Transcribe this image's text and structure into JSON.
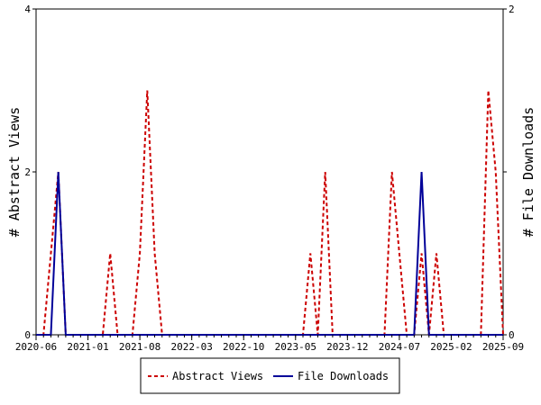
{
  "chart_data": {
    "type": "line",
    "title": "",
    "x_tick_labels": [
      "2020-06",
      "2021-01",
      "2021-08",
      "2022-03",
      "2022-10",
      "2023-05",
      "2023-12",
      "2024-07",
      "2025-02",
      "2025-09"
    ],
    "y_left": {
      "label": "# Abstract Views",
      "range": [
        0,
        4
      ],
      "ticks": [
        0,
        2,
        4
      ]
    },
    "y_right": {
      "label": "# File Downloads",
      "range": [
        0,
        2
      ],
      "ticks": [
        0,
        1,
        2
      ]
    },
    "x_range": [
      "2020-06",
      "2025-09"
    ],
    "legend_position": "bottom",
    "grid": false,
    "series": [
      {
        "name": "Abstract Views",
        "axis": "left",
        "color": "#cc0000",
        "dash": "dashed",
        "x": [
          "2020-06",
          "2020-07",
          "2020-08",
          "2020-09",
          "2020-10",
          "2020-11",
          "2020-12",
          "2021-01",
          "2021-02",
          "2021-03",
          "2021-04",
          "2021-05",
          "2021-06",
          "2021-07",
          "2021-08",
          "2021-09",
          "2021-10",
          "2021-11",
          "2021-12",
          "2022-01",
          "2022-02",
          "2022-03",
          "2022-04",
          "2022-05",
          "2022-06",
          "2022-07",
          "2022-08",
          "2022-09",
          "2022-10",
          "2022-11",
          "2022-12",
          "2023-01",
          "2023-02",
          "2023-03",
          "2023-04",
          "2023-05",
          "2023-06",
          "2023-07",
          "2023-08",
          "2023-09",
          "2023-10",
          "2023-11",
          "2023-12",
          "2024-01",
          "2024-02",
          "2024-03",
          "2024-04",
          "2024-05",
          "2024-06",
          "2024-07",
          "2024-08",
          "2024-09",
          "2024-10",
          "2024-11",
          "2024-12",
          "2025-01",
          "2025-02",
          "2025-03",
          "2025-04",
          "2025-05",
          "2025-06",
          "2025-07",
          "2025-08",
          "2025-09"
        ],
        "values": [
          0,
          0,
          1,
          2,
          0,
          0,
          0,
          0,
          0,
          0,
          1,
          0,
          0,
          0,
          1,
          3,
          1,
          0,
          0,
          0,
          0,
          0,
          0,
          0,
          0,
          0,
          0,
          0,
          0,
          0,
          0,
          0,
          0,
          0,
          0,
          0,
          0,
          1,
          0,
          2,
          0,
          0,
          0,
          0,
          0,
          0,
          0,
          0,
          2,
          1,
          0,
          0,
          1,
          0,
          1,
          0,
          0,
          0,
          0,
          0,
          0,
          3,
          2,
          0
        ]
      },
      {
        "name": "File Downloads",
        "axis": "right",
        "color": "#000099",
        "dash": "solid",
        "x": [
          "2020-06",
          "2020-07",
          "2020-08",
          "2020-09",
          "2020-10",
          "2020-11",
          "2020-12",
          "2021-01",
          "2021-02",
          "2021-03",
          "2021-04",
          "2021-05",
          "2021-06",
          "2021-07",
          "2021-08",
          "2021-09",
          "2021-10",
          "2021-11",
          "2021-12",
          "2022-01",
          "2022-02",
          "2022-03",
          "2022-04",
          "2022-05",
          "2022-06",
          "2022-07",
          "2022-08",
          "2022-09",
          "2022-10",
          "2022-11",
          "2022-12",
          "2023-01",
          "2023-02",
          "2023-03",
          "2023-04",
          "2023-05",
          "2023-06",
          "2023-07",
          "2023-08",
          "2023-09",
          "2023-10",
          "2023-11",
          "2023-12",
          "2024-01",
          "2024-02",
          "2024-03",
          "2024-04",
          "2024-05",
          "2024-06",
          "2024-07",
          "2024-08",
          "2024-09",
          "2024-10",
          "2024-11",
          "2024-12",
          "2025-01",
          "2025-02",
          "2025-03",
          "2025-04",
          "2025-05",
          "2025-06",
          "2025-07",
          "2025-08",
          "2025-09"
        ],
        "values": [
          0,
          0,
          0,
          1,
          0,
          0,
          0,
          0,
          0,
          0,
          0,
          0,
          0,
          0,
          0,
          0,
          0,
          0,
          0,
          0,
          0,
          0,
          0,
          0,
          0,
          0,
          0,
          0,
          0,
          0,
          0,
          0,
          0,
          0,
          0,
          0,
          0,
          0,
          0,
          0,
          0,
          0,
          0,
          0,
          0,
          0,
          0,
          0,
          0,
          0,
          0,
          0,
          1,
          0,
          0,
          0,
          0,
          0,
          0,
          0,
          0,
          0,
          0,
          0
        ]
      }
    ]
  }
}
